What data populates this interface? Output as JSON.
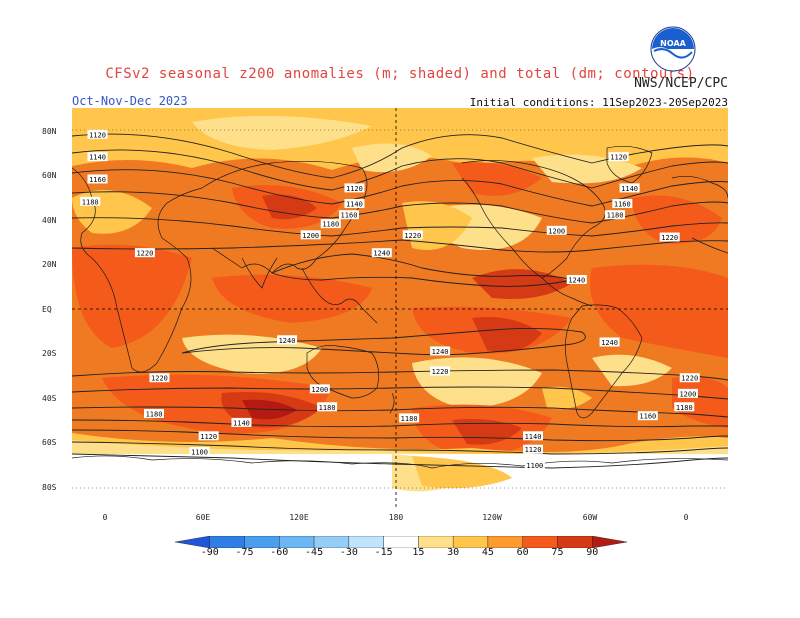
{
  "header": {
    "title": "CFSv2 seasonal z200 anomalies (m; shaded) and total (dm; contours)",
    "org": "NWS/NCEP/CPC",
    "season": "Oct-Nov-Dec 2023",
    "initial_conditions": "Initial conditions: 11Sep2023-20Sep2023",
    "logo_text": "NOAA"
  },
  "colors": {
    "ocean_base": "#f07a22",
    "anom_15_30": "#ffe08a",
    "anom_30_45": "#ffc64b",
    "anom_45_60": "#ff9a2e",
    "anom_60_75": "#f45a1a",
    "anom_75_90": "#d63a14",
    "anom_90p": "#b41a12",
    "neutral": "#ffffff",
    "title_color": "#e0453f",
    "season_color": "#3558c8"
  },
  "axes": {
    "lat_labels": [
      "80N",
      "60N",
      "40N",
      "20N",
      "EQ",
      "20S",
      "40S",
      "60S",
      "80S"
    ],
    "lon_labels": [
      "0",
      "60E",
      "120E",
      "180",
      "120W",
      "60W",
      "0"
    ]
  },
  "contour_labels": [
    {
      "text": "1120",
      "lon": -6,
      "lat": 78
    },
    {
      "text": "1140",
      "lon": -6,
      "lat": 68
    },
    {
      "text": "1160",
      "lon": -6,
      "lat": 58
    },
    {
      "text": "1180",
      "lon": -10,
      "lat": 48
    },
    {
      "text": "1220",
      "lon": 20,
      "lat": 25
    },
    {
      "text": "1120",
      "lon": 135,
      "lat": 54
    },
    {
      "text": "1140",
      "lon": 135,
      "lat": 47
    },
    {
      "text": "1160",
      "lon": 132,
      "lat": 42
    },
    {
      "text": "1180",
      "lon": 122,
      "lat": 38
    },
    {
      "text": "1200",
      "lon": 111,
      "lat": 33
    },
    {
      "text": "1220",
      "lon": 167,
      "lat": 33
    },
    {
      "text": "1240",
      "lon": 150,
      "lat": 25
    },
    {
      "text": "1120",
      "lon": 280,
      "lat": 68
    },
    {
      "text": "1140",
      "lon": 286,
      "lat": 54
    },
    {
      "text": "1160",
      "lon": 282,
      "lat": 47
    },
    {
      "text": "1180",
      "lon": 278,
      "lat": 42
    },
    {
      "text": "1200",
      "lon": 246,
      "lat": 35
    },
    {
      "text": "1220",
      "lon": 308,
      "lat": 32
    },
    {
      "text": "1240",
      "lon": 257,
      "lat": 13
    },
    {
      "text": "1240",
      "lon": 98,
      "lat": -14
    },
    {
      "text": "1240",
      "lon": 182,
      "lat": -19
    },
    {
      "text": "1240",
      "lon": 275,
      "lat": -15
    },
    {
      "text": "1220",
      "lon": 28,
      "lat": -31
    },
    {
      "text": "1220",
      "lon": 182,
      "lat": -28
    },
    {
      "text": "1220",
      "lon": 319,
      "lat": -31
    },
    {
      "text": "1200",
      "lon": 116,
      "lat": -36
    },
    {
      "text": "1200",
      "lon": 318,
      "lat": -38
    },
    {
      "text": "1180",
      "lon": 120,
      "lat": -44
    },
    {
      "text": "1180",
      "lon": 316,
      "lat": -44
    },
    {
      "text": "1180",
      "lon": 165,
      "lat": -49
    },
    {
      "text": "1180",
      "lon": 25,
      "lat": -47
    },
    {
      "text": "1160",
      "lon": 296,
      "lat": -48
    },
    {
      "text": "1140",
      "lon": 73,
      "lat": -51
    },
    {
      "text": "1120",
      "lon": 55,
      "lat": -57
    },
    {
      "text": "1140",
      "lon": 233,
      "lat": -57
    },
    {
      "text": "1120",
      "lon": 233,
      "lat": -63
    },
    {
      "text": "1100",
      "lon": 50,
      "lat": -64
    },
    {
      "text": "1100",
      "lon": 234,
      "lat": -70
    }
  ],
  "colorbar": {
    "labels": [
      "-90",
      "-75",
      "-60",
      "-45",
      "-30",
      "-15",
      "15",
      "30",
      "45",
      "60",
      "75",
      "90"
    ],
    "colors": [
      "#1f55d8",
      "#2f7ee8",
      "#4a9ef0",
      "#6db6f6",
      "#94cdf8",
      "#bfe4fb",
      "#ffffff",
      "#ffe08a",
      "#ffc64b",
      "#ff9a2e",
      "#f45a1a",
      "#d63a14",
      "#b41a12"
    ]
  }
}
